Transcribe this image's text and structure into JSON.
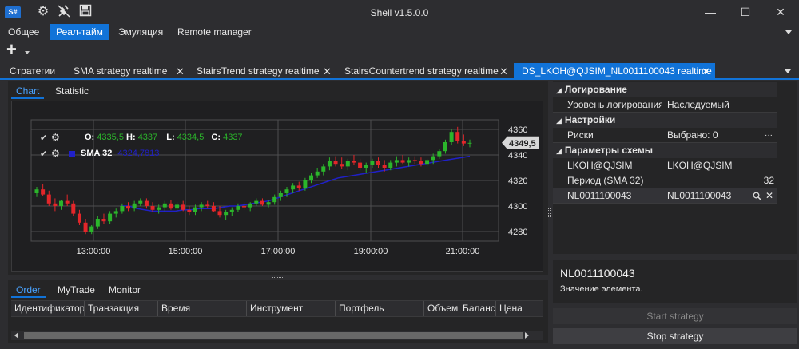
{
  "window": {
    "app_icon_label": "S#",
    "title": "Shell v1.5.0.0",
    "minimize_glyph": "—",
    "maximize_glyph": "☐",
    "close_glyph": "✕",
    "toolbar_icons": [
      "gear-icon",
      "plug-icon",
      "save-icon"
    ]
  },
  "menu": {
    "items": [
      "Общее",
      "Реал-тайм",
      "Эмуляция",
      "Remote manager"
    ],
    "active_index": 1
  },
  "toolbar": {
    "add_glyph": "+"
  },
  "strategy_tabs": {
    "items": [
      {
        "label": "Стратегии",
        "closable": false
      },
      {
        "label": "SMA strategy realtime",
        "closable": true
      },
      {
        "label": "StairsTrend strategy realtime",
        "closable": true
      },
      {
        "label": "StairsCountertrend strategy realtime",
        "closable": true
      },
      {
        "label": "DS_LKOH@QJSIM_NL0011100043 realtime",
        "closable": true
      }
    ],
    "active_index": 4,
    "close_glyph": "✕"
  },
  "chart_tabs": {
    "items": [
      "Chart",
      "Statistic"
    ],
    "active_index": 0
  },
  "chart_data": {
    "type": "candlestick",
    "legend": {
      "ohlc_labels": {
        "open": "O:",
        "high": "H:",
        "low": "L:",
        "close": "C:"
      },
      "ohlc_values": {
        "open": "4335,5",
        "high": "4337",
        "low": "4334,5",
        "close": "4337"
      },
      "sma_label": "SMA 32",
      "sma_value": "4324,7813"
    },
    "y_ticks": [
      4280,
      4300,
      4320,
      4340,
      4360
    ],
    "x_ticks": [
      "13:00:00",
      "15:00:00",
      "17:00:00",
      "19:00:00",
      "21:00:00"
    ],
    "last_price_label": "4349,5",
    "colors": {
      "up": "#2bb52b",
      "down": "#e3262a",
      "sma": "#2020c8",
      "grid": "#4e4e50"
    },
    "candles": [
      [
        4310,
        4315,
        4307,
        4313
      ],
      [
        4313,
        4317,
        4308,
        4309
      ],
      [
        4309,
        4312,
        4300,
        4302
      ],
      [
        4302,
        4306,
        4296,
        4300
      ],
      [
        4300,
        4305,
        4297,
        4304
      ],
      [
        4304,
        4309,
        4300,
        4302
      ],
      [
        4302,
        4304,
        4292,
        4294
      ],
      [
        4294,
        4297,
        4285,
        4287
      ],
      [
        4287,
        4290,
        4278,
        4280
      ],
      [
        4280,
        4285,
        4278,
        4284
      ],
      [
        4284,
        4292,
        4282,
        4290
      ],
      [
        4290,
        4294,
        4286,
        4288
      ],
      [
        4288,
        4296,
        4286,
        4294
      ],
      [
        4294,
        4298,
        4291,
        4296
      ],
      [
        4296,
        4302,
        4294,
        4300
      ],
      [
        4300,
        4303,
        4296,
        4298
      ],
      [
        4298,
        4304,
        4296,
        4302
      ],
      [
        4302,
        4306,
        4300,
        4304
      ],
      [
        4304,
        4306,
        4298,
        4300
      ],
      [
        4300,
        4303,
        4295,
        4297
      ],
      [
        4297,
        4301,
        4294,
        4299
      ],
      [
        4299,
        4304,
        4296,
        4302
      ],
      [
        4302,
        4305,
        4297,
        4298
      ],
      [
        4298,
        4303,
        4295,
        4301
      ],
      [
        4301,
        4304,
        4296,
        4297
      ],
      [
        4297,
        4300,
        4293,
        4295
      ],
      [
        4295,
        4301,
        4293,
        4299
      ],
      [
        4299,
        4303,
        4296,
        4301
      ],
      [
        4301,
        4304,
        4298,
        4300
      ],
      [
        4300,
        4303,
        4295,
        4296
      ],
      [
        4296,
        4300,
        4291,
        4293
      ],
      [
        4293,
        4297,
        4289,
        4295
      ],
      [
        4295,
        4299,
        4292,
        4297
      ],
      [
        4297,
        4302,
        4295,
        4300
      ],
      [
        4300,
        4303,
        4297,
        4299
      ],
      [
        4299,
        4303,
        4296,
        4302
      ],
      [
        4302,
        4306,
        4300,
        4304
      ],
      [
        4304,
        4306,
        4300,
        4301
      ],
      [
        4301,
        4305,
        4299,
        4303
      ],
      [
        4303,
        4309,
        4301,
        4307
      ],
      [
        4307,
        4312,
        4304,
        4310
      ],
      [
        4310,
        4315,
        4307,
        4313
      ],
      [
        4313,
        4318,
        4310,
        4316
      ],
      [
        4316,
        4319,
        4312,
        4314
      ],
      [
        4314,
        4322,
        4312,
        4320
      ],
      [
        4320,
        4326,
        4318,
        4324
      ],
      [
        4324,
        4330,
        4322,
        4327
      ],
      [
        4327,
        4333,
        4324,
        4331
      ],
      [
        4331,
        4338,
        4328,
        4335
      ],
      [
        4335,
        4339,
        4331,
        4333
      ],
      [
        4333,
        4338,
        4329,
        4331
      ],
      [
        4331,
        4337,
        4328,
        4335
      ],
      [
        4335,
        4340,
        4332,
        4334
      ],
      [
        4334,
        4337,
        4328,
        4330
      ],
      [
        4330,
        4334,
        4326,
        4332
      ],
      [
        4332,
        4337,
        4330,
        4335
      ],
      [
        4335,
        4338,
        4330,
        4332
      ],
      [
        4332,
        4336,
        4327,
        4330
      ],
      [
        4330,
        4336,
        4328,
        4334
      ],
      [
        4334,
        4339,
        4331,
        4336
      ],
      [
        4336,
        4340,
        4333,
        4334
      ],
      [
        4334,
        4338,
        4331,
        4336
      ],
      [
        4336,
        4339,
        4333,
        4335
      ],
      [
        4335,
        4338,
        4331,
        4333
      ],
      [
        4333,
        4337,
        4331,
        4336
      ],
      [
        4336,
        4341,
        4333,
        4339
      ],
      [
        4339,
        4345,
        4337,
        4343
      ],
      [
        4343,
        4352,
        4341,
        4350
      ],
      [
        4350,
        4360,
        4348,
        4358
      ],
      [
        4358,
        4362,
        4349,
        4351
      ],
      [
        4351,
        4356,
        4347,
        4349
      ],
      [
        4349,
        4352,
        4346,
        4349.5
      ]
    ],
    "sma": [
      4300,
      4300,
      4298,
      4297,
      4296,
      4296,
      4296,
      4296,
      4297,
      4297,
      4298,
      4298,
      4298,
      4299,
      4300,
      4300,
      4301,
      4302,
      4303,
      4304,
      4306,
      4308,
      4310,
      4312,
      4314,
      4316,
      4318,
      4320,
      4322,
      4323,
      4324,
      4325,
      4326,
      4327,
      4328,
      4329,
      4330,
      4331,
      4332,
      4333,
      4334,
      4335,
      4336,
      4337,
      4338,
      4339
    ],
    "sma_start_index": 26
  },
  "properties": {
    "sections": [
      {
        "title": "Логирование",
        "rows": [
          {
            "name": "Уровень логирования",
            "value": "Наследуемый"
          }
        ]
      },
      {
        "title": "Настройки",
        "rows": [
          {
            "name": "Риски",
            "value": "Выбрано: 0"
          }
        ]
      },
      {
        "title": "Параметры схемы",
        "rows": [
          {
            "name": "LKOH@QJSIM",
            "value": "LKOH@QJSIM"
          },
          {
            "name": "Период (SMA 32)",
            "value": "32"
          },
          {
            "name": "NL0011100043",
            "value": "NL0011100043"
          }
        ]
      }
    ],
    "ellipsis_glyph": "···",
    "description_title": "NL0011100043",
    "description_text": "Значение элемента."
  },
  "bottom_tabs": {
    "items": [
      "Order",
      "MyTrade",
      "Monitor"
    ],
    "active_index": 0
  },
  "order_table": {
    "columns": [
      "Идентификатор",
      "Транзакция",
      "Время",
      "Инструмент",
      "Портфель",
      "Объем",
      "Баланс",
      "Цена"
    ]
  },
  "buttons": {
    "start": "Start strategy",
    "stop": "Stop strategy"
  }
}
